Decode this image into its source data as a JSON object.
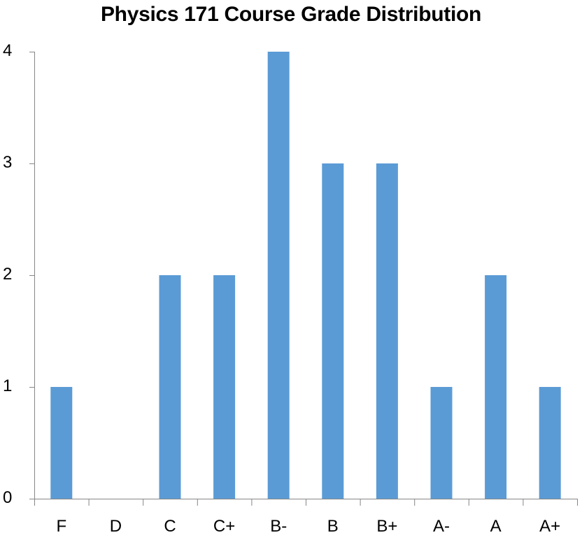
{
  "chart_data": {
    "type": "bar",
    "title": "Physics 171 Course Grade Distribution",
    "xlabel": "",
    "ylabel": "",
    "categories": [
      "F",
      "D",
      "C",
      "C+",
      "B-",
      "B",
      "B+",
      "A-",
      "A",
      "A+"
    ],
    "values": [
      1,
      0,
      2,
      2,
      4,
      3,
      3,
      1,
      2,
      1
    ],
    "ylim": [
      0,
      4
    ],
    "yticks": [
      0,
      1,
      2,
      3,
      4
    ],
    "grid": false,
    "legend": null,
    "bar_color": "#5B9BD5"
  }
}
